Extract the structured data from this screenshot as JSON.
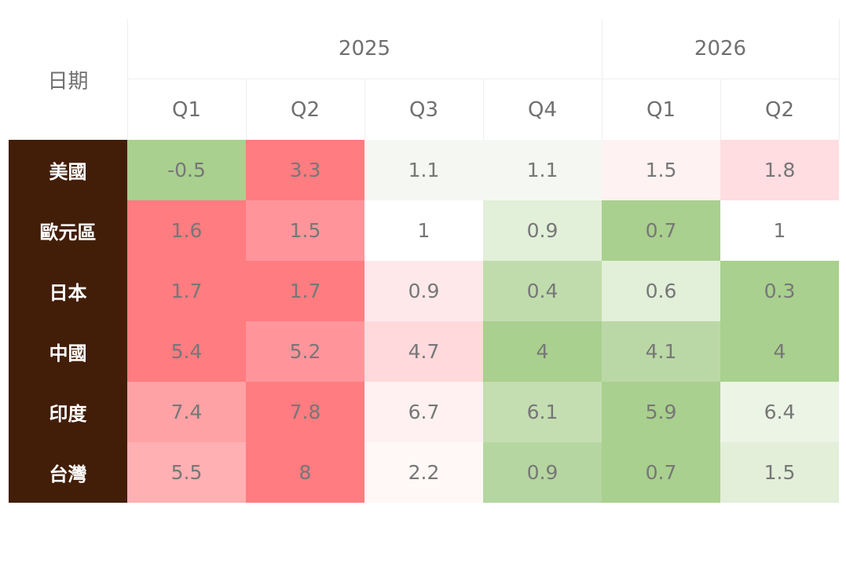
{
  "chart_data": {
    "type": "heatmap",
    "corner_label": "日期",
    "year_groups": [
      {
        "year": "2025",
        "quarters": [
          "Q1",
          "Q2",
          "Q3",
          "Q4"
        ]
      },
      {
        "year": "2026",
        "quarters": [
          "Q1",
          "Q2"
        ]
      }
    ],
    "rows": [
      {
        "label": "美國",
        "values": [
          "-0.5",
          "3.3",
          "1.1",
          "1.1",
          "1.5",
          "1.8"
        ]
      },
      {
        "label": "歐元區",
        "values": [
          "1.6",
          "1.5",
          "1",
          "0.9",
          "0.7",
          "1"
        ]
      },
      {
        "label": "日本",
        "values": [
          "1.7",
          "1.7",
          "0.9",
          "0.4",
          "0.6",
          "0.3"
        ]
      },
      {
        "label": "中國",
        "values": [
          "5.4",
          "5.2",
          "4.7",
          "4",
          "4.1",
          "4"
        ]
      },
      {
        "label": "印度",
        "values": [
          "7.4",
          "7.8",
          "6.7",
          "6.1",
          "5.9",
          "6.4"
        ]
      },
      {
        "label": "台灣",
        "values": [
          "5.5",
          "8",
          "2.2",
          "0.9",
          "0.7",
          "1.5"
        ]
      }
    ],
    "cell_colors": [
      [
        "#a9d08e",
        "#ff7c80",
        "#f5f8f2",
        "#f5f8f2",
        "#fff2f2",
        "#ffdde0"
      ],
      [
        "#ff7c80",
        "#ff959a",
        "#ffffff",
        "#e2efd9",
        "#a9d08e",
        "#ffffff"
      ],
      [
        "#ff7c80",
        "#ff7c80",
        "#ffe8ea",
        "#c0dcac",
        "#e2efd9",
        "#a9d08e"
      ],
      [
        "#ff7c80",
        "#ff959a",
        "#ffd9dc",
        "#a9d08e",
        "#bad8a5",
        "#a9d08e"
      ],
      [
        "#ffa2a6",
        "#ff7c80",
        "#fff1f1",
        "#c4deb2",
        "#a9d08e",
        "#ecf4e6"
      ],
      [
        "#ffb0b3",
        "#ff7c80",
        "#fff8f7",
        "#b6d6a1",
        "#a9d08e",
        "#e3efd9"
      ]
    ],
    "row_label_background": "#421e08",
    "row_label_color": "#ffffff",
    "value_color": "#777777"
  }
}
